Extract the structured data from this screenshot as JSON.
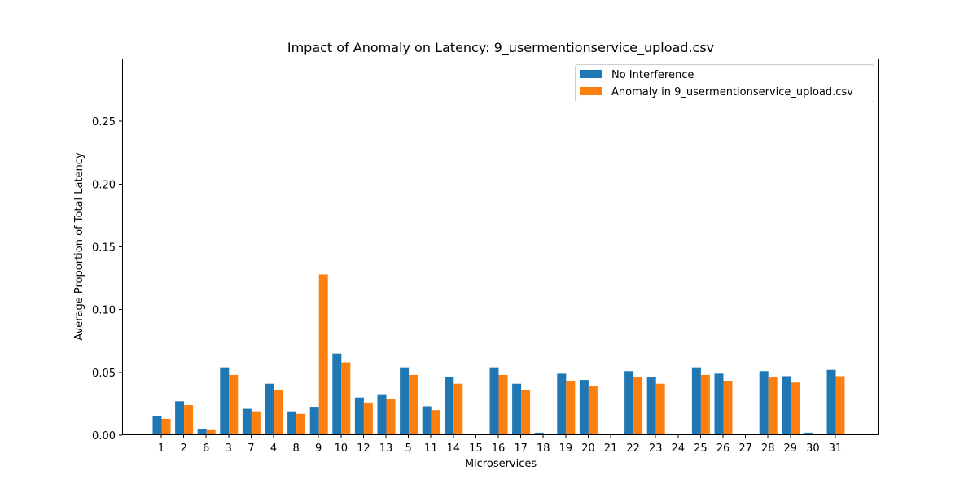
{
  "chart_data": {
    "type": "bar",
    "title": "Impact of Anomaly on Latency: 9_usermentionservice_upload.csv",
    "xlabel": "Microservices",
    "ylabel": "Average Proportion of Total Latency",
    "ylim": [
      0,
      0.3
    ],
    "yticks": [
      "0.00",
      "0.05",
      "0.10",
      "0.15",
      "0.20",
      "0.25"
    ],
    "ytick_values": [
      0,
      0.05,
      0.1,
      0.15,
      0.2,
      0.25
    ],
    "legend_position": "top-right",
    "grid": false,
    "categories": [
      "1",
      "2",
      "6",
      "3",
      "7",
      "4",
      "8",
      "9",
      "10",
      "12",
      "13",
      "5",
      "11",
      "14",
      "15",
      "16",
      "17",
      "18",
      "19",
      "20",
      "21",
      "22",
      "23",
      "24",
      "25",
      "26",
      "27",
      "28",
      "29",
      "30",
      "31"
    ],
    "series": [
      {
        "name": "No Interference",
        "color": "#1f77b4",
        "values": [
          0.015,
          0.027,
          0.005,
          0.054,
          0.021,
          0.041,
          0.019,
          0.022,
          0.065,
          0.03,
          0.032,
          0.054,
          0.023,
          0.046,
          0.001,
          0.054,
          0.041,
          0.002,
          0.049,
          0.044,
          0.001,
          0.051,
          0.046,
          0.001,
          0.054,
          0.049,
          0.001,
          0.051,
          0.047,
          0.002,
          0.052
        ]
      },
      {
        "name": "Anomaly in 9_usermentionservice_upload.csv",
        "color": "#ff7f0e",
        "values": [
          0.013,
          0.024,
          0.004,
          0.048,
          0.019,
          0.036,
          0.017,
          0.128,
          0.058,
          0.026,
          0.029,
          0.048,
          0.02,
          0.041,
          0.001,
          0.048,
          0.036,
          0.001,
          0.043,
          0.039,
          0.001,
          0.046,
          0.041,
          0.001,
          0.048,
          0.043,
          0.001,
          0.046,
          0.042,
          0.001,
          0.047
        ]
      }
    ]
  }
}
